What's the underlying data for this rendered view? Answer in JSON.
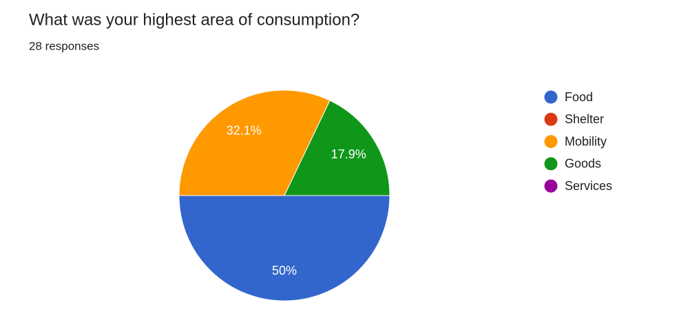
{
  "chart_data": {
    "type": "pie",
    "title": "What was your highest area of consumption?",
    "subtitle": "28 responses",
    "categories": [
      "Food",
      "Shelter",
      "Mobility",
      "Goods",
      "Services"
    ],
    "values": [
      50,
      0,
      32.1,
      17.9,
      0
    ],
    "value_labels": [
      "50%",
      null,
      "32.1%",
      "17.9%",
      null
    ],
    "colors": [
      "#3366cc",
      "#dc3912",
      "#ff9900",
      "#109618",
      "#990099"
    ],
    "legend": "right"
  }
}
